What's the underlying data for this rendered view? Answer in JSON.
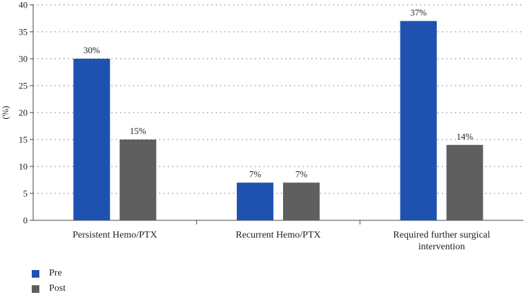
{
  "chart_data": {
    "type": "bar",
    "categories": [
      "Persistent Hemo/PTX",
      "Recurrent Hemo/PTX",
      "Required further surgical intervention"
    ],
    "category_lines": [
      [
        "Persistent Hemo/PTX"
      ],
      [
        "Recurrent Hemo/PTX"
      ],
      [
        "Required further surgical",
        "intervention"
      ]
    ],
    "series": [
      {
        "name": "Pre",
        "values": [
          30,
          7,
          37
        ],
        "labels": [
          "30%",
          "7%",
          "37%"
        ],
        "color": "#1f52b0"
      },
      {
        "name": "Post",
        "values": [
          15,
          7,
          14
        ],
        "labels": [
          "15%",
          "7%",
          "14%"
        ],
        "color": "#5f5f5f"
      }
    ],
    "ylabel": "(%)",
    "ylim": [
      0,
      40
    ],
    "yticks": [
      0,
      5,
      10,
      15,
      20,
      25,
      30,
      35,
      40
    ],
    "grid": "horizontal dotted",
    "legend_position": "bottom-left"
  }
}
